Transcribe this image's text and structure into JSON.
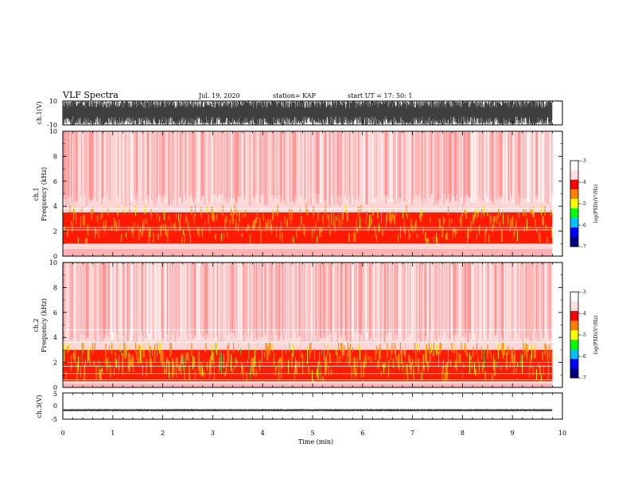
{
  "header": {
    "title": "VLF Spectra",
    "date": "Jul. 19, 2020",
    "station": "station= KAP",
    "start": "start UT =  17: 50: 1"
  },
  "colors": {
    "spectrogram_background": "#ffffff",
    "spectrogram_main": "#ff0000",
    "colormap": [
      "#ffffff",
      "#ffe0e0",
      "#ff0000",
      "#ff8000",
      "#ffff00",
      "#00ff00",
      "#00c0ff",
      "#0000ff",
      "#000080"
    ]
  },
  "chart_data": [
    {
      "panel": "ch1-waveform",
      "type": "line",
      "ylabel": "ch.1(V)",
      "ylim": [
        -10,
        10
      ],
      "ytick_labels": [
        "10",
        "-10"
      ],
      "xlim": [
        0,
        10
      ],
      "series": [
        {
          "description": "dense oscillating waveform",
          "approx_max": 10,
          "approx_min": -10,
          "end_min": 9.8
        }
      ]
    },
    {
      "panel": "ch1-spectrogram",
      "type": "heatmap",
      "ylabel": "ch.1\nFrequency (kHz)",
      "ylim": [
        0,
        10
      ],
      "ytick_labels": [
        "0",
        "2",
        "4",
        "6",
        "8",
        "10"
      ],
      "xlim": [
        0,
        9.8
      ],
      "intense_band_khz": [
        1.0,
        3.5
      ],
      "colorbar": {
        "label": "log(PSD)(V²/Hz)",
        "range": [
          -7,
          -3
        ],
        "tick_labels": [
          "-3",
          "-4",
          "-5",
          "-6",
          "-7"
        ]
      }
    },
    {
      "panel": "ch2-spectrogram",
      "type": "heatmap",
      "ylabel": "ch.2\nFrequency (kHz)",
      "ylim": [
        0,
        10
      ],
      "ytick_labels": [
        "0",
        "2",
        "4",
        "6",
        "8",
        "10"
      ],
      "xlim": [
        0,
        9.8
      ],
      "intense_band_khz": [
        0.5,
        3.0
      ],
      "colorbar": {
        "label": "log(PSD)(V²/Hz)",
        "range": [
          -7,
          -3
        ],
        "tick_labels": [
          "-3",
          "-4",
          "-5",
          "-6",
          "-7"
        ]
      }
    },
    {
      "panel": "ch3-waveform",
      "type": "line",
      "ylabel": "ch.3(V)",
      "ylim": [
        -5,
        5
      ],
      "ytick_labels": [
        "5",
        "0",
        "-5"
      ],
      "xlim": [
        0,
        10
      ],
      "series": [
        {
          "description": "thin band around -1.5 V",
          "approx_max": -1.1,
          "approx_min": -2.0,
          "end_min": 9.8
        }
      ]
    }
  ],
  "x_axis": {
    "label": "Time (min)",
    "ticks": [
      0,
      1,
      2,
      3,
      4,
      5,
      6,
      7,
      8,
      9,
      10
    ],
    "tick_labels": [
      "0",
      "1",
      "2",
      "3",
      "4",
      "5",
      "6",
      "7",
      "8",
      "9",
      "10"
    ]
  }
}
